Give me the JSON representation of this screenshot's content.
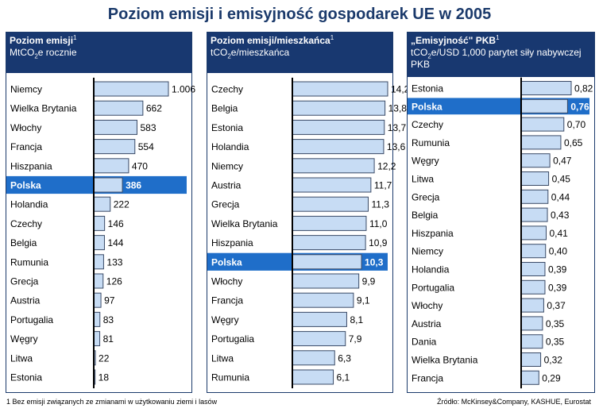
{
  "title": "Poziom emisji i emisyjność gospodarek UE w 2005",
  "footnote": "1 Bez emisji związanych ze zmianami w użytkowaniu ziemi i lasów",
  "source": "Źródło: McKinsey&Company, KASHUE, Eurostat",
  "colors": {
    "header_bg": "#183870",
    "highlight_bg": "#1f6ec9",
    "bar_fill": "#c7dcf4",
    "bar_stroke": "#3a4a66",
    "axis": "#000000"
  },
  "chart_data": [
    {
      "type": "bar",
      "orientation": "horizontal",
      "header": {
        "title": "Poziom emisji",
        "title_sup": "1",
        "unit_pre": "MtCO",
        "unit_sub": "2",
        "unit_post": "e rocznie"
      },
      "highlight": "Polska",
      "xlim": [
        0,
        1200
      ],
      "categories": [
        "Niemcy",
        "Wielka Brytania",
        "Włochy",
        "Francja",
        "Hiszpania",
        "Polska",
        "Holandia",
        "Czechy",
        "Belgia",
        "Rumunia",
        "Grecja",
        "Austria",
        "Portugalia",
        "Węgry",
        "Litwa",
        "Estonia"
      ],
      "values": [
        1006,
        662,
        583,
        554,
        470,
        386,
        222,
        146,
        144,
        133,
        126,
        97,
        83,
        81,
        22,
        18
      ],
      "labels": [
        "1.006",
        "662",
        "583",
        "554",
        "470",
        "386",
        "222",
        "146",
        "144",
        "133",
        "126",
        "97",
        "83",
        "81",
        "22",
        "18"
      ]
    },
    {
      "type": "bar",
      "orientation": "horizontal",
      "header": {
        "title": "Poziom emisji/mieszkańca",
        "title_sup": "1",
        "unit_pre": "tCO",
        "unit_sub": "2",
        "unit_post": "e/mieszkańca"
      },
      "highlight": "Polska",
      "xlim": [
        0,
        15.5
      ],
      "categories": [
        "Czechy",
        "Belgia",
        "Estonia",
        "Holandia",
        "Niemcy",
        "Austria",
        "Grecja",
        "Wielka Brytania",
        "Hiszpania",
        "Polska",
        "Włochy",
        "Francja",
        "Węgry",
        "Portugalia",
        "Litwa",
        "Rumunia"
      ],
      "values": [
        14.2,
        13.8,
        13.7,
        13.6,
        12.2,
        11.7,
        11.3,
        11.0,
        10.9,
        10.3,
        9.9,
        9.1,
        8.1,
        7.9,
        6.3,
        6.1
      ],
      "labels": [
        "14,2",
        "13,8",
        "13,7",
        "13,6",
        "12,2",
        "11,7",
        "11,3",
        "11,0",
        "10,9",
        "10,3",
        "9,9",
        "9,1",
        "8,1",
        "7,9",
        "6,3",
        "6,1"
      ]
    },
    {
      "type": "bar",
      "orientation": "horizontal",
      "header": {
        "title": "„Emisyjność\" PKB",
        "title_sup": "1",
        "unit_pre": "tCO",
        "unit_sub": "2",
        "unit_post": "e/USD 1,000 parytet siły nabywczej PKB"
      },
      "highlight": "Polska",
      "xlim": [
        0,
        0.95
      ],
      "categories": [
        "Estonia",
        "Polska",
        "Czechy",
        "Rumunia",
        "Węgry",
        "Litwa",
        "Grecja",
        "Belgia",
        "Hiszpania",
        "Niemcy",
        "Holandia",
        "Portugalia",
        "Włochy",
        "Austria",
        "Dania",
        "Wielka Brytania",
        "Francja"
      ],
      "values": [
        0.82,
        0.76,
        0.7,
        0.65,
        0.47,
        0.45,
        0.44,
        0.43,
        0.41,
        0.4,
        0.39,
        0.39,
        0.37,
        0.35,
        0.35,
        0.32,
        0.29
      ],
      "labels": [
        "0,82",
        "0,76",
        "0,70",
        "0,65",
        "0,47",
        "0,45",
        "0,44",
        "0,43",
        "0,41",
        "0,40",
        "0,39",
        "0,39",
        "0,37",
        "0,35",
        "0,35",
        "0,32",
        "0,29"
      ]
    }
  ]
}
